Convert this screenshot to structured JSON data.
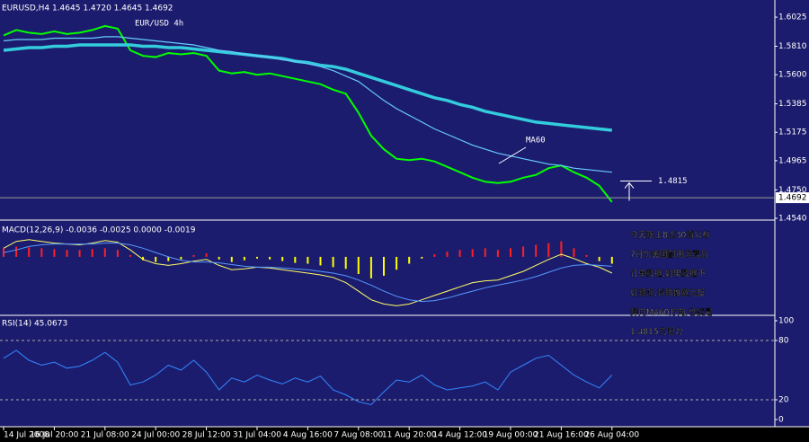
{
  "chart_data": [
    {
      "type": "line",
      "header": "EURUSD,H4 1.4645 1.4720 1.4645 1.4692",
      "title": "EUR/USD 4h",
      "categories": [
        "14 Jul 2008",
        null,
        null,
        null,
        "16 Jul 20:00",
        null,
        null,
        null,
        "21 Jul 08:00",
        null,
        null,
        null,
        "24 Jul 00:00",
        null,
        null,
        null,
        "28 Jul 12:00",
        null,
        null,
        null,
        "31 Jul 04:00",
        null,
        null,
        null,
        "4 Aug 16:00",
        null,
        null,
        null,
        "7 Aug 08:00",
        null,
        null,
        null,
        "11 Aug 20:00",
        null,
        null,
        null,
        "14 Aug 12:00",
        null,
        null,
        null,
        "19 Aug 00:00",
        null,
        null,
        null,
        "21 Aug 16:00",
        null,
        null,
        null,
        "26 Aug 04:00"
      ],
      "series": [
        {
          "color": "#00ff00",
          "width": 2,
          "values": [
            1.589,
            1.593,
            1.591,
            1.59,
            1.592,
            1.59,
            1.591,
            1.593,
            1.596,
            1.594,
            1.578,
            1.574,
            1.573,
            1.576,
            1.575,
            1.576,
            1.574,
            1.563,
            1.561,
            1.562,
            1.56,
            1.561,
            1.559,
            1.557,
            1.555,
            1.553,
            1.549,
            1.546,
            1.532,
            1.515,
            1.505,
            1.498,
            1.497,
            1.498,
            1.496,
            1.492,
            1.488,
            1.484,
            1.481,
            1.48,
            1.481,
            1.484,
            1.486,
            1.491,
            1.493,
            1.488,
            1.484,
            1.478,
            1.466
          ]
        },
        {
          "color": "#33ccdd",
          "width": 3.5,
          "values": [
            1.578,
            1.579,
            1.58,
            1.58,
            1.581,
            1.581,
            1.582,
            1.582,
            1.582,
            1.582,
            1.582,
            1.581,
            1.581,
            1.58,
            1.58,
            1.579,
            1.578,
            1.577,
            1.576,
            1.575,
            1.574,
            1.573,
            1.572,
            1.57,
            1.569,
            1.567,
            1.566,
            1.564,
            1.561,
            1.558,
            1.555,
            1.552,
            1.549,
            1.546,
            1.543,
            1.541,
            1.538,
            1.536,
            1.533,
            1.531,
            1.529,
            1.527,
            1.525,
            1.524,
            1.523,
            1.522,
            1.521,
            1.52,
            1.519
          ]
        },
        {
          "color": "#66ccff",
          "width": 1.2,
          "values": [
            1.585,
            1.586,
            1.586,
            1.586,
            1.587,
            1.587,
            1.587,
            1.587,
            1.588,
            1.588,
            1.587,
            1.586,
            1.585,
            1.584,
            1.583,
            1.582,
            1.58,
            1.578,
            1.577,
            1.575,
            1.574,
            1.573,
            1.571,
            1.57,
            1.568,
            1.566,
            1.563,
            1.559,
            1.555,
            1.548,
            1.541,
            1.535,
            1.53,
            1.525,
            1.52,
            1.516,
            1.512,
            1.508,
            1.505,
            1.502,
            1.5,
            1.498,
            1.496,
            1.494,
            1.493,
            1.491,
            1.49,
            1.489,
            1.488
          ]
        }
      ],
      "annotation": "MA60",
      "resistance": 1.4815,
      "last_price": 1.4692,
      "ylim": [
        1.454,
        1.6125
      ],
      "yticks": [
        {
          "value": 1.454,
          "label": "1.4540"
        },
        {
          "value": 1.475,
          "label": "1.4750"
        },
        1.4965,
        1.5175,
        1.5385,
        {
          "value": 1.56,
          "label": "1.5600"
        },
        {
          "value": 1.581,
          "label": "1.5810"
        },
        1.6025
      ]
    },
    {
      "type": "bar",
      "header": "MACD(12,26,9) -0.0036 -0.0025 0.0000 -0.0019",
      "ylim": [
        -0.0065,
        0.0025
      ],
      "series": [
        {
          "type": "bar",
          "color": "#ff2020",
          "negative_color": "#ffff00",
          "values": [
            0.001,
            0.0012,
            0.0011,
            0.001,
            0.0009,
            0.0008,
            0.0008,
            0.0009,
            0.001,
            0.0008,
            0.0002,
            -0.0004,
            -0.0006,
            -0.0005,
            -0.0003,
            0.0002,
            0.0004,
            -0.0003,
            -0.0006,
            -0.0004,
            -0.0002,
            -0.0003,
            -0.0005,
            -0.0007,
            -0.0008,
            -0.001,
            -0.0012,
            -0.0014,
            -0.002,
            -0.0025,
            -0.0022,
            -0.0015,
            -0.0008,
            -0.0002,
            0.0003,
            0.0006,
            0.0008,
            0.0009,
            0.001,
            0.0008,
            0.001,
            0.0012,
            0.0014,
            0.0016,
            0.0018,
            0.001,
            0.0002,
            -0.0005,
            -0.0008
          ]
        },
        {
          "type": "line",
          "color": "#ffff66",
          "values": [
            0.001,
            0.0018,
            0.002,
            0.0018,
            0.0016,
            0.0015,
            0.0014,
            0.0016,
            0.0019,
            0.0017,
            0.0008,
            -0.0003,
            -0.0008,
            -0.001,
            -0.0008,
            -0.0005,
            -0.0003,
            -0.001,
            -0.0015,
            -0.0014,
            -0.0012,
            -0.0013,
            -0.0015,
            -0.0017,
            -0.0019,
            -0.0021,
            -0.0024,
            -0.003,
            -0.004,
            -0.005,
            -0.0055,
            -0.0057,
            -0.0055,
            -0.005,
            -0.0045,
            -0.004,
            -0.0035,
            -0.003,
            -0.0028,
            -0.0027,
            -0.0022,
            -0.0017,
            -0.001,
            -0.0003,
            0.0003,
            -0.0002,
            -0.0008,
            -0.0012,
            -0.0019
          ]
        },
        {
          "type": "line",
          "color": "#5599ff",
          "values": [
            0.0005,
            0.0008,
            0.0012,
            0.0014,
            0.0015,
            0.0015,
            0.0015,
            0.0015,
            0.0016,
            0.0016,
            0.0014,
            0.001,
            0.0005,
            0.0,
            -0.0004,
            -0.0006,
            -0.0006,
            -0.0007,
            -0.0009,
            -0.0011,
            -0.0012,
            -0.0012,
            -0.0013,
            -0.0014,
            -0.0015,
            -0.0017,
            -0.0019,
            -0.0022,
            -0.0027,
            -0.0033,
            -0.004,
            -0.0046,
            -0.005,
            -0.0052,
            -0.0051,
            -0.0048,
            -0.0044,
            -0.004,
            -0.0036,
            -0.0033,
            -0.003,
            -0.0027,
            -0.0023,
            -0.0018,
            -0.0013,
            -0.001,
            -0.0009,
            -0.001,
            -0.0011
          ]
        }
      ]
    },
    {
      "type": "line",
      "header": "RSI(14) 45.0673",
      "ylim": [
        0,
        100
      ],
      "yticks": [
        0,
        20,
        80,
        100
      ],
      "series": [
        {
          "color": "#3388ff",
          "width": 1,
          "values": [
            62,
            70,
            60,
            55,
            58,
            52,
            54,
            60,
            68,
            58,
            35,
            38,
            45,
            55,
            50,
            60,
            48,
            30,
            42,
            38,
            45,
            40,
            36,
            42,
            38,
            44,
            30,
            25,
            18,
            15,
            28,
            40,
            38,
            45,
            35,
            30,
            32,
            34,
            38,
            30,
            48,
            55,
            62,
            65,
            55,
            45,
            38,
            32,
            45
          ]
        }
      ]
    }
  ],
  "note": [
    "今天晚上8点30将公布",
    "7月份美国耐用消费品",
    "订单数据,如果数据不",
    "如预期,将助推欧元反",
    "弹向MA60方向,也就是",
    "1.4815的阻力"
  ]
}
